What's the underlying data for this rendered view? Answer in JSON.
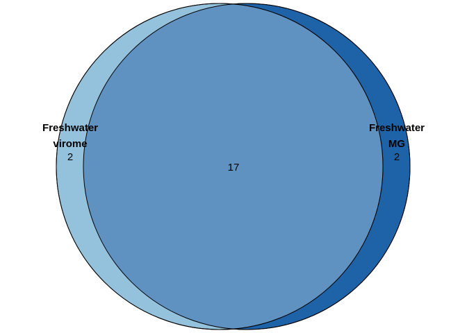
{
  "venn": {
    "sets": [
      {
        "name_line1": "Freshwater",
        "name_line2": "virome",
        "only_count": "2",
        "color": "#94c2dc"
      },
      {
        "name_line1": "Freshwater",
        "name_line2": "MG",
        "only_count": "2",
        "color": "#1e63a8"
      }
    ],
    "overlap_count": "17",
    "overlap_color": "#5f91c1",
    "outline_color": "#000000"
  }
}
